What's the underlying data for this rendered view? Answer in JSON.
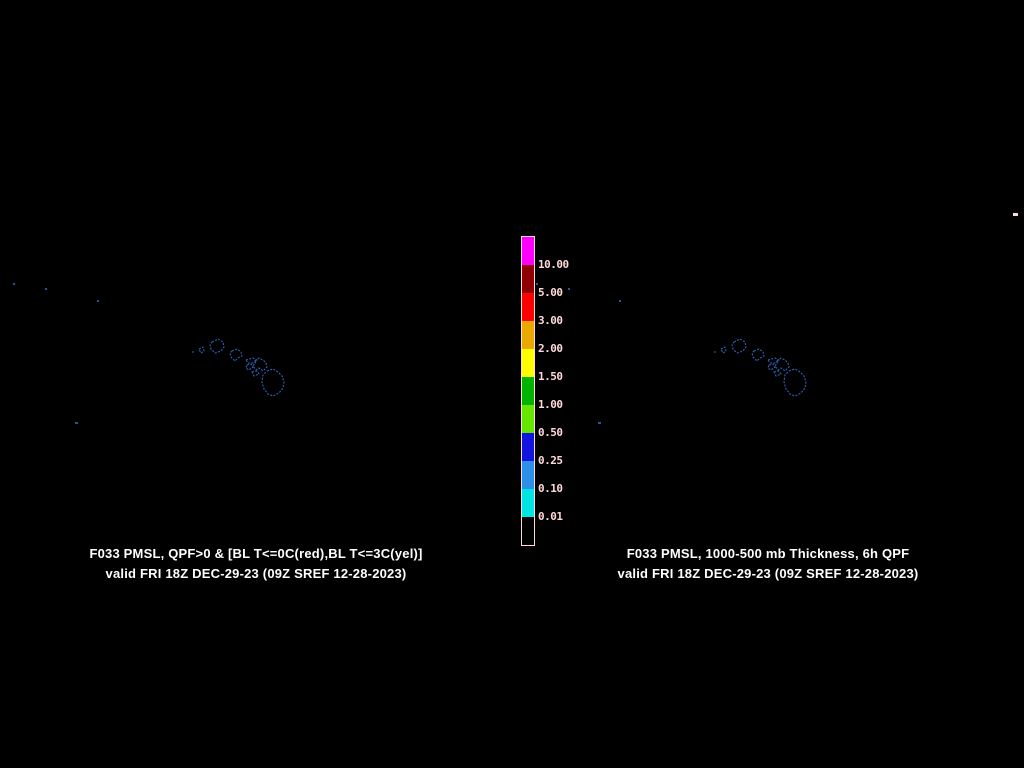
{
  "colors": {
    "background": "#000000",
    "coastline": "#2E64B8",
    "colorbar_border": "#FFD9D9",
    "colorbar_label_text": "#FFD9D9",
    "caption_text": "#FFFFFF"
  },
  "panels": {
    "left": {
      "caption_line1": "F033 PMSL, QPF>0 & [BL T<=0C(red),BL T<=3C(yel)]",
      "caption_line2": "valid FRI 18Z DEC-29-23 (09Z SREF 12-28-2023)"
    },
    "right": {
      "caption_line1": "F033 PMSL, 1000-500 mb Thickness, 6h QPF",
      "caption_line2": "valid FRI 18Z DEC-29-23 (09Z SREF 12-28-2023)"
    }
  },
  "colorbar": {
    "orientation": "vertical",
    "labels": [
      "10.00",
      "5.00",
      "3.00",
      "2.00",
      "1.50",
      "1.00",
      "0.50",
      "0.25",
      "0.10",
      "0.01"
    ],
    "segment_colors": [
      "#FF00FF",
      "#900000",
      "#FF0000",
      "#EAA800",
      "#FFFF00",
      "#00B400",
      "#66E500",
      "#1414E0",
      "#2E8FE8",
      "#00E4E4",
      "#000000"
    ]
  }
}
